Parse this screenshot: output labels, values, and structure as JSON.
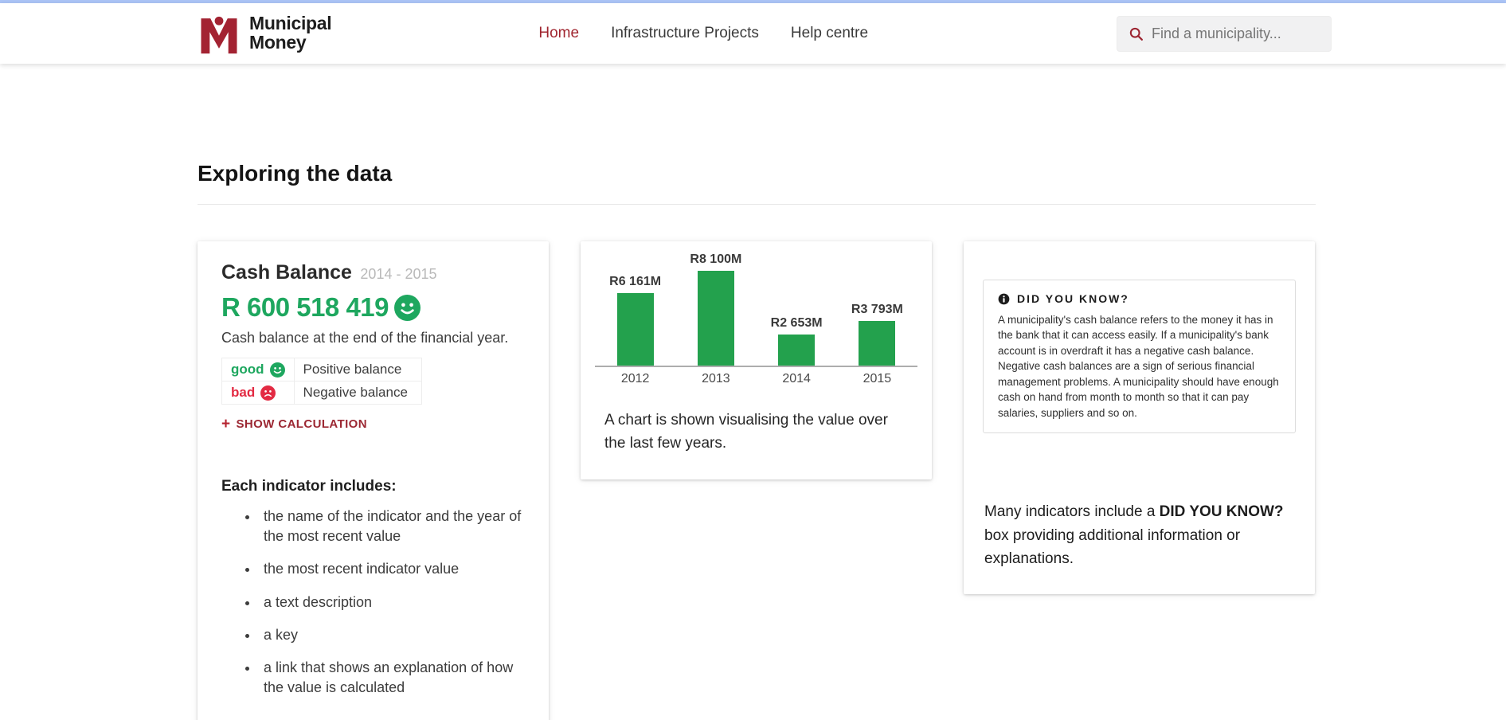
{
  "colors": {
    "topline_blue": "#abc4f6",
    "maroon_accent": "#a0252f",
    "green_value": "#1ea75f",
    "green_bar": "#23a14d",
    "red_bad": "#e32b43"
  },
  "header": {
    "logo_line1": "Municipal",
    "logo_line2": "Money",
    "nav": [
      {
        "label": "Home",
        "active": true
      },
      {
        "label": "Infrastructure Projects",
        "active": false
      },
      {
        "label": "Help centre",
        "active": false
      }
    ],
    "search_placeholder": "Find a municipality..."
  },
  "page": {
    "section_title": "Exploring the data"
  },
  "indicator_card": {
    "title": "Cash Balance",
    "period": "2014 - 2015",
    "value": "R 600 518 419",
    "description": "Cash balance at the end of the financial year.",
    "key": [
      {
        "label": "good",
        "meaning": "Positive balance"
      },
      {
        "label": "bad",
        "meaning": "Negative balance"
      }
    ],
    "show_calculation_label": "SHOW CALCULATION",
    "includes_heading": "Each indicator includes:",
    "includes_items": [
      "the name of the indicator and the year of the most recent value",
      "the most recent indicator value",
      "a text description",
      "a key",
      "a link that shows an explanation of how the value is calculated"
    ]
  },
  "chart_card": {
    "caption": "A chart is shown visualising the value over the last few years."
  },
  "chart_data": {
    "type": "bar",
    "categories": [
      "2012",
      "2013",
      "2014",
      "2015"
    ],
    "values": [
      6161,
      8100,
      2653,
      3793
    ],
    "value_labels": [
      "R6 161M",
      "R8 100M",
      "R2 653M",
      "R3 793M"
    ],
    "unit": "R millions (rand)",
    "bar_color": "#23a14d",
    "title": "",
    "xlabel": "",
    "ylabel": "",
    "ylim": [
      0,
      8100
    ],
    "grid": false,
    "legend": false
  },
  "did_you_know_card": {
    "box_heading": "DID YOU KNOW?",
    "box_text": "A municipality's cash balance refers to the money it has in the bank that it can access easily. If a municipality's bank account is in overdraft it has a negative cash balance. Negative cash balances are a sign of serious financial management problems. A municipality should have enough cash on hand from month to month so that it can pay salaries, suppliers and so on.",
    "note_prefix": "Many indicators include a ",
    "note_bold": "DID YOU KNOW?",
    "note_suffix": " box providing additional information or explanations."
  }
}
